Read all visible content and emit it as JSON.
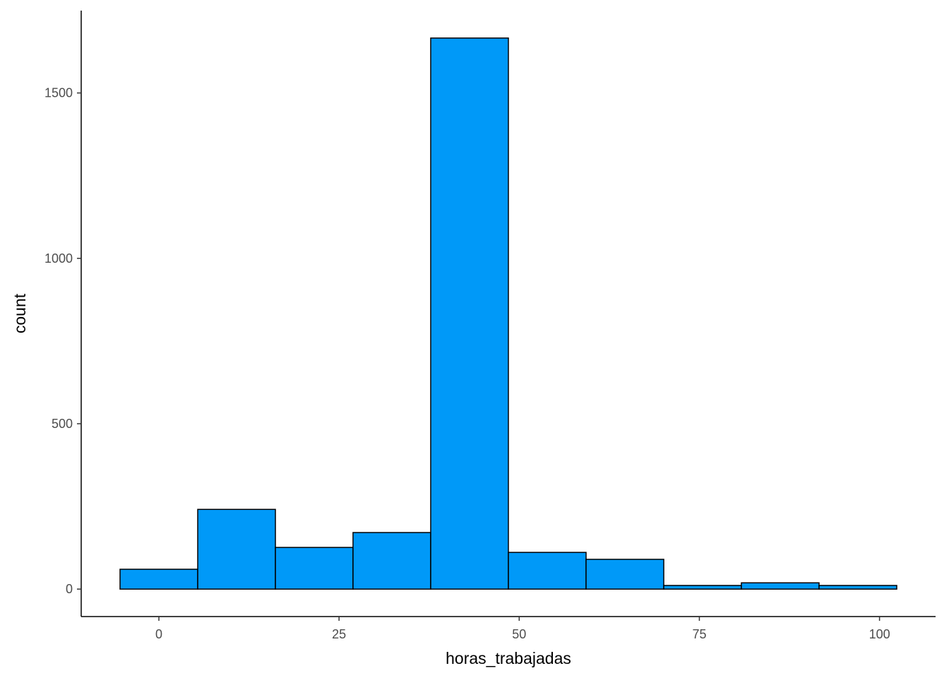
{
  "chart_data": {
    "type": "histogram",
    "x_label": "horas_trabajadas",
    "y_label": "count",
    "bins": [
      -5.39,
      5.39,
      16.17,
      26.94,
      37.72,
      48.5,
      59.28,
      70.06,
      80.83,
      91.61,
      102.39
    ],
    "values": [
      60,
      241,
      126,
      171,
      1666,
      111,
      90,
      11,
      19,
      11
    ],
    "color": "#0099f8",
    "edge_color": "#000000",
    "xlim": [
      -10.78,
      107.78
    ],
    "xticks": [
      0,
      25,
      50,
      75,
      100
    ],
    "ylim": [
      -83,
      1749
    ],
    "yticks": [
      0,
      500,
      1000,
      1500
    ],
    "grid": false
  }
}
